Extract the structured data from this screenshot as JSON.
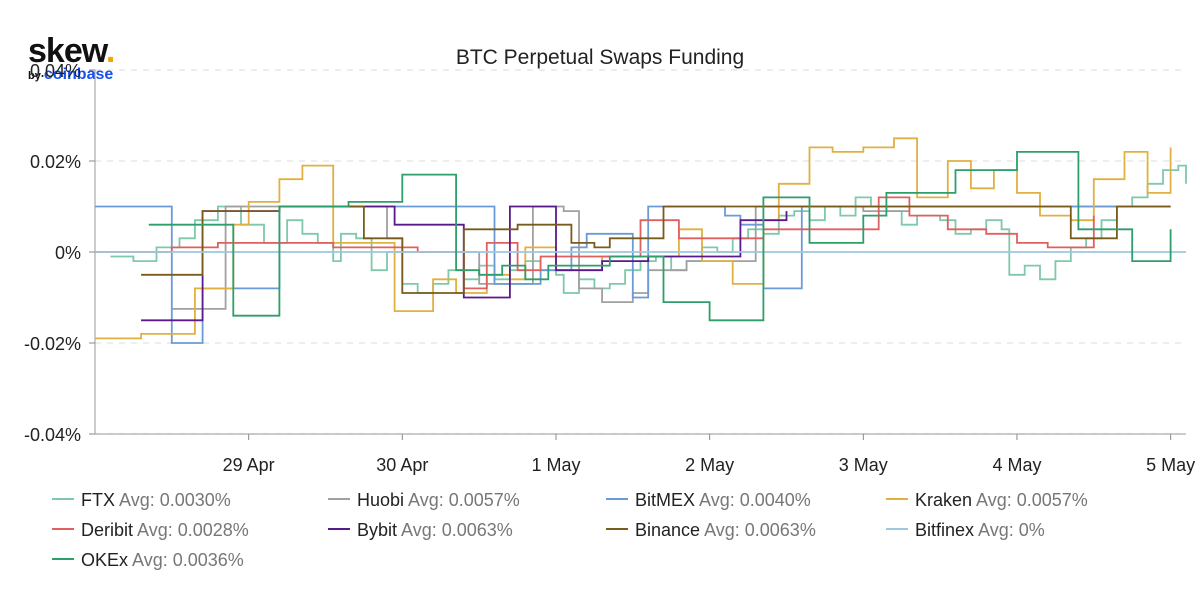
{
  "logo": {
    "brand": "skew",
    "by": "by",
    "parent": "coinbase"
  },
  "chart_data": {
    "type": "line",
    "title": "BTC Perpetual Swaps Funding",
    "xlabel": "",
    "ylabel": "",
    "x_ticks": [
      "29 Apr",
      "30 Apr",
      "1 May",
      "2 May",
      "3 May",
      "4 May",
      "5 May"
    ],
    "y_ticks": [
      "0.04%",
      "0.02%",
      "0%",
      "-0.02%",
      "-0.04%"
    ],
    "xlim": [
      -1,
      6.1
    ],
    "ylim": [
      -0.04,
      0.04
    ],
    "grid": true,
    "legend": "bottom",
    "series": [
      {
        "name": "FTX",
        "avg": "Avg: 0.0030%",
        "color": "#7fc8a9",
        "points": [
          [
            -0.9,
            -0.001
          ],
          [
            -0.75,
            -0.002
          ],
          [
            -0.6,
            0.001
          ],
          [
            -0.45,
            0.003
          ],
          [
            -0.35,
            0.007
          ],
          [
            -0.2,
            0.01
          ],
          [
            -0.05,
            0.006
          ],
          [
            0.1,
            0.002
          ],
          [
            0.25,
            0.007
          ],
          [
            0.35,
            0.004
          ],
          [
            0.45,
            0.002
          ],
          [
            0.55,
            -0.002
          ],
          [
            0.6,
            0.004
          ],
          [
            0.7,
            0.003
          ],
          [
            0.8,
            -0.004
          ],
          [
            0.9,
            0.0
          ],
          [
            1.0,
            -0.007
          ],
          [
            1.1,
            -0.009
          ],
          [
            1.2,
            -0.007
          ],
          [
            1.3,
            -0.004
          ],
          [
            1.4,
            -0.006
          ],
          [
            1.5,
            -0.003
          ],
          [
            1.6,
            -0.006
          ],
          [
            1.7,
            -0.004
          ],
          [
            1.8,
            -0.002
          ],
          [
            1.9,
            -0.004
          ],
          [
            2.0,
            -0.005
          ],
          [
            2.05,
            -0.009
          ],
          [
            2.15,
            -0.006
          ],
          [
            2.25,
            -0.008
          ],
          [
            2.35,
            -0.007
          ],
          [
            2.45,
            -0.004
          ],
          [
            2.55,
            -0.002
          ],
          [
            2.65,
            -0.001
          ],
          [
            2.75,
            -0.004
          ],
          [
            2.85,
            -0.002
          ],
          [
            2.95,
            0.001
          ],
          [
            3.05,
            0.0
          ],
          [
            3.15,
            0.003
          ],
          [
            3.25,
            0.005
          ],
          [
            3.35,
            0.004
          ],
          [
            3.45,
            0.008
          ],
          [
            3.55,
            0.009
          ],
          [
            3.65,
            0.007
          ],
          [
            3.75,
            0.01
          ],
          [
            3.85,
            0.008
          ],
          [
            3.95,
            0.012
          ],
          [
            4.05,
            0.01
          ],
          [
            4.15,
            0.009
          ],
          [
            4.25,
            0.006
          ],
          [
            4.35,
            0.008
          ],
          [
            4.5,
            0.007
          ],
          [
            4.6,
            0.004
          ],
          [
            4.7,
            0.005
          ],
          [
            4.8,
            0.007
          ],
          [
            4.9,
            0.005
          ],
          [
            4.95,
            -0.005
          ],
          [
            5.05,
            -0.003
          ],
          [
            5.15,
            -0.006
          ],
          [
            5.25,
            -0.002
          ],
          [
            5.35,
            0.001
          ],
          [
            5.45,
            0.003
          ],
          [
            5.55,
            0.007
          ],
          [
            5.65,
            0.01
          ],
          [
            5.75,
            0.012
          ],
          [
            5.85,
            0.015
          ],
          [
            5.95,
            0.018
          ],
          [
            6.05,
            0.019
          ],
          [
            6.1,
            0.015
          ]
        ]
      },
      {
        "name": "Huobi",
        "avg": "Avg: 0.0057%",
        "color": "#a0a0a0",
        "points": [
          [
            -0.5,
            -0.0125
          ],
          [
            -0.2,
            -0.0125
          ],
          [
            -0.15,
            0.01
          ],
          [
            0.2,
            0.01
          ],
          [
            0.8,
            0.01
          ],
          [
            0.9,
            0.003
          ],
          [
            1.0,
            0.0
          ],
          [
            1.15,
            0.0
          ],
          [
            1.5,
            -0.007
          ],
          [
            1.8,
            -0.007
          ],
          [
            1.85,
            0.01
          ],
          [
            2.05,
            0.009
          ],
          [
            2.15,
            -0.008
          ],
          [
            2.3,
            -0.011
          ],
          [
            2.5,
            -0.009
          ],
          [
            2.6,
            -0.004
          ],
          [
            2.8,
            -0.004
          ],
          [
            2.85,
            -0.002
          ],
          [
            3.0,
            -0.002
          ],
          [
            3.3,
            0.01
          ],
          [
            3.6,
            0.01
          ],
          [
            4.0,
            0.009
          ],
          [
            4.3,
            0.01
          ],
          [
            5.0,
            0.01
          ],
          [
            6.0,
            0.01
          ]
        ]
      },
      {
        "name": "BitMEX",
        "avg": "Avg: 0.0040%",
        "color": "#6b9bd6",
        "points": [
          [
            -1.0,
            0.01
          ],
          [
            -0.55,
            0.01
          ],
          [
            -0.5,
            -0.02
          ],
          [
            -0.35,
            -0.02
          ],
          [
            -0.3,
            -0.008
          ],
          [
            -0.05,
            -0.008
          ],
          [
            0.2,
            0.01
          ],
          [
            1.0,
            0.01
          ],
          [
            1.5,
            0.01
          ],
          [
            1.6,
            -0.007
          ],
          [
            1.9,
            -0.004
          ],
          [
            2.1,
            0.001
          ],
          [
            2.2,
            0.004
          ],
          [
            2.35,
            0.004
          ],
          [
            2.5,
            -0.01
          ],
          [
            2.6,
            0.01
          ],
          [
            3.0,
            0.01
          ],
          [
            3.1,
            0.008
          ],
          [
            3.2,
            0.006
          ],
          [
            3.35,
            -0.008
          ],
          [
            3.5,
            -0.008
          ],
          [
            3.6,
            0.01
          ],
          [
            4.1,
            0.01
          ],
          [
            4.5,
            0.01
          ],
          [
            5.0,
            0.01
          ],
          [
            6.0,
            0.01
          ]
        ]
      },
      {
        "name": "Kraken",
        "avg": "Avg: 0.0057%",
        "color": "#e0b040",
        "points": [
          [
            -1.0,
            -0.019
          ],
          [
            -0.8,
            -0.019
          ],
          [
            -0.7,
            -0.018
          ],
          [
            -0.6,
            -0.018
          ],
          [
            -0.35,
            -0.008
          ],
          [
            -0.15,
            -0.008
          ],
          [
            -0.1,
            0.006
          ],
          [
            0.0,
            0.011
          ],
          [
            0.2,
            0.016
          ],
          [
            0.35,
            0.019
          ],
          [
            0.55,
            0.002
          ],
          [
            0.75,
            0.002
          ],
          [
            0.95,
            -0.013
          ],
          [
            1.05,
            -0.013
          ],
          [
            1.2,
            -0.006
          ],
          [
            1.35,
            -0.009
          ],
          [
            1.55,
            -0.005
          ],
          [
            1.7,
            -0.006
          ],
          [
            1.8,
            0.001
          ],
          [
            2.0,
            -0.004
          ],
          [
            2.15,
            -0.004
          ],
          [
            2.3,
            -0.001
          ],
          [
            2.55,
            -0.001
          ],
          [
            2.8,
            0.005
          ],
          [
            2.95,
            -0.002
          ],
          [
            3.15,
            -0.007
          ],
          [
            3.35,
            0.007
          ],
          [
            3.45,
            0.015
          ],
          [
            3.65,
            0.023
          ],
          [
            3.8,
            0.022
          ],
          [
            4.0,
            0.023
          ],
          [
            4.2,
            0.025
          ],
          [
            4.35,
            0.012
          ],
          [
            4.55,
            0.02
          ],
          [
            4.7,
            0.014
          ],
          [
            4.85,
            0.018
          ],
          [
            5.0,
            0.013
          ],
          [
            5.15,
            0.008
          ],
          [
            5.35,
            0.007
          ],
          [
            5.5,
            0.016
          ],
          [
            5.7,
            0.022
          ],
          [
            5.85,
            0.013
          ],
          [
            6.0,
            0.023
          ]
        ]
      },
      {
        "name": "Deribit",
        "avg": "Avg: 0.0028%",
        "color": "#e06060",
        "points": [
          [
            -1.0,
            0.0
          ],
          [
            -0.55,
            0.0
          ],
          [
            -0.5,
            0.001
          ],
          [
            -0.3,
            0.001
          ],
          [
            -0.2,
            0.002
          ],
          [
            0.1,
            0.002
          ],
          [
            0.2,
            0.002
          ],
          [
            0.5,
            0.002
          ],
          [
            0.55,
            0.001
          ],
          [
            1.1,
            0.0
          ],
          [
            1.4,
            -0.008
          ],
          [
            1.55,
            0.002
          ],
          [
            1.65,
            0.002
          ],
          [
            1.75,
            -0.004
          ],
          [
            1.9,
            -0.001
          ],
          [
            2.3,
            -0.001
          ],
          [
            2.45,
            -0.001
          ],
          [
            2.55,
            0.007
          ],
          [
            2.8,
            0.003
          ],
          [
            3.05,
            0.003
          ],
          [
            3.35,
            0.005
          ],
          [
            3.6,
            0.005
          ],
          [
            3.9,
            0.005
          ],
          [
            4.1,
            0.012
          ],
          [
            4.3,
            0.008
          ],
          [
            4.55,
            0.005
          ],
          [
            4.8,
            0.004
          ],
          [
            5.0,
            0.002
          ],
          [
            5.2,
            0.001
          ],
          [
            5.4,
            0.001
          ],
          [
            5.5,
            0.001
          ],
          [
            5.5,
            0.008
          ]
        ]
      },
      {
        "name": "Bybit",
        "avg": "Avg: 0.0063%",
        "color": "#5b1a8b",
        "points": [
          [
            -0.7,
            -0.015
          ],
          [
            -0.35,
            -0.015
          ],
          [
            -0.3,
            0.009
          ],
          [
            0.2,
            0.01
          ],
          [
            0.95,
            0.006
          ],
          [
            1.15,
            0.006
          ],
          [
            1.4,
            -0.01
          ],
          [
            1.55,
            -0.01
          ],
          [
            1.7,
            0.01
          ],
          [
            1.85,
            0.01
          ],
          [
            2.0,
            -0.004
          ],
          [
            2.15,
            -0.004
          ],
          [
            2.3,
            -0.002
          ],
          [
            2.45,
            -0.002
          ],
          [
            2.6,
            -0.001
          ],
          [
            2.7,
            -0.001
          ],
          [
            3.2,
            0.007
          ],
          [
            3.4,
            0.007
          ],
          [
            3.5,
            0.009
          ]
        ]
      },
      {
        "name": "Binance",
        "avg": "Avg: 0.0063%",
        "color": "#7a5b1e",
        "points": [
          [
            -0.7,
            -0.005
          ],
          [
            -0.35,
            -0.005
          ],
          [
            -0.3,
            0.009
          ],
          [
            0.0,
            0.009
          ],
          [
            0.2,
            0.01
          ],
          [
            0.55,
            0.01
          ],
          [
            0.75,
            0.003
          ],
          [
            0.85,
            0.003
          ],
          [
            1.0,
            -0.009
          ],
          [
            1.2,
            -0.009
          ],
          [
            1.4,
            0.005
          ],
          [
            1.55,
            0.005
          ],
          [
            1.75,
            0.006
          ],
          [
            2.05,
            0.006
          ],
          [
            2.1,
            0.002
          ],
          [
            2.25,
            0.001
          ],
          [
            2.35,
            0.003
          ],
          [
            2.6,
            0.003
          ],
          [
            2.7,
            0.01
          ],
          [
            3.0,
            0.01
          ],
          [
            3.55,
            0.01
          ],
          [
            4.0,
            0.01
          ],
          [
            4.5,
            0.01
          ],
          [
            5.0,
            0.01
          ],
          [
            5.35,
            0.003
          ],
          [
            5.5,
            0.003
          ],
          [
            5.65,
            0.01
          ],
          [
            6.0,
            0.01
          ]
        ]
      },
      {
        "name": "Bitfinex",
        "avg": "Avg: 0%",
        "color": "#9ec8e0",
        "points": [
          [
            -1.0,
            0.0
          ],
          [
            6.1,
            0.0
          ]
        ]
      },
      {
        "name": "OKEx",
        "avg": "Avg: 0.0036%",
        "color": "#2e9e6a",
        "points": [
          [
            -0.65,
            0.006
          ],
          [
            -0.2,
            0.006
          ],
          [
            -0.1,
            -0.014
          ],
          [
            0.1,
            -0.014
          ],
          [
            0.2,
            0.01
          ],
          [
            0.5,
            0.01
          ],
          [
            0.65,
            0.011
          ],
          [
            0.85,
            0.011
          ],
          [
            1.0,
            0.017
          ],
          [
            1.1,
            0.017
          ],
          [
            1.35,
            -0.004
          ],
          [
            1.5,
            -0.005
          ],
          [
            1.65,
            -0.003
          ],
          [
            1.8,
            -0.006
          ],
          [
            1.95,
            -0.003
          ],
          [
            2.15,
            -0.003
          ],
          [
            2.35,
            -0.001
          ],
          [
            2.55,
            -0.001
          ],
          [
            2.7,
            -0.011
          ],
          [
            2.85,
            -0.011
          ],
          [
            3.0,
            -0.015
          ],
          [
            3.2,
            -0.015
          ],
          [
            3.35,
            0.012
          ],
          [
            3.5,
            0.012
          ],
          [
            3.65,
            0.002
          ],
          [
            3.8,
            0.002
          ],
          [
            4.0,
            0.008
          ],
          [
            4.15,
            0.013
          ],
          [
            4.4,
            0.013
          ],
          [
            4.6,
            0.018
          ],
          [
            4.85,
            0.018
          ],
          [
            5.0,
            0.022
          ],
          [
            5.35,
            0.022
          ],
          [
            5.4,
            0.005
          ],
          [
            5.5,
            0.005
          ],
          [
            5.7,
            0.005
          ],
          [
            5.75,
            -0.002
          ],
          [
            6.0,
            -0.002
          ],
          [
            6.0,
            0.005
          ]
        ]
      }
    ]
  }
}
